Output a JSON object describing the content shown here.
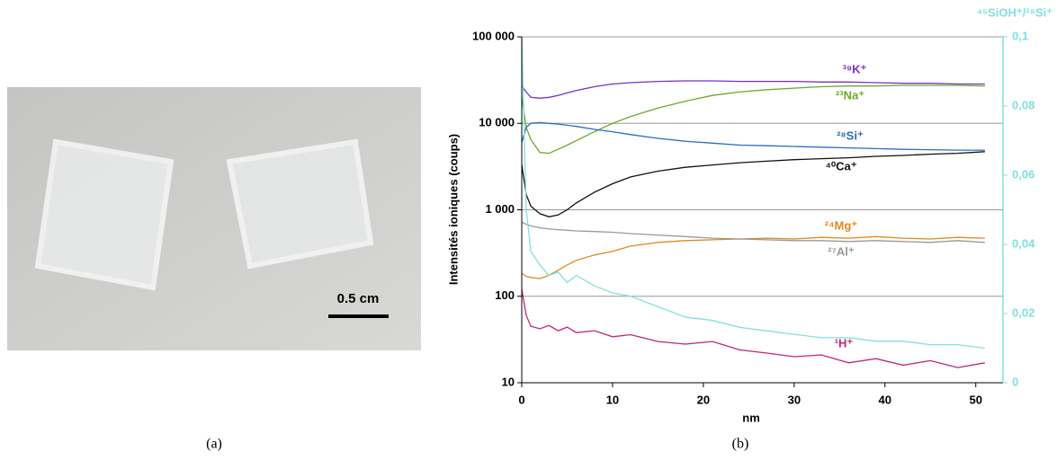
{
  "figure": {
    "captions": [
      "(a)",
      "(b)"
    ],
    "scale_bar": "0.5 cm"
  },
  "chart_data": {
    "type": "line",
    "x_label": "nm",
    "y_label": "Intensités ioniques (coups)",
    "x": [
      0,
      0.5,
      1,
      2,
      3,
      4,
      5,
      6,
      8,
      10,
      12,
      15,
      18,
      21,
      24,
      27,
      30,
      33,
      36,
      39,
      42,
      45,
      48,
      51
    ],
    "xlim": [
      0,
      53
    ],
    "xticks": [
      0,
      10,
      20,
      30,
      40,
      50
    ],
    "ylim": [
      10,
      100000
    ],
    "log_y": true,
    "yticks": [
      10,
      100,
      {
        "value": 1000,
        "label": "1 000"
      },
      {
        "value": 10000,
        "label": "10 000"
      },
      {
        "value": 100000,
        "label": "100 000"
      }
    ],
    "y2lim": [
      0,
      0.1
    ],
    "y2ticks": [
      0,
      {
        "value": 0.02,
        "label": "0,02"
      },
      {
        "value": 0.04,
        "label": "0,04"
      },
      {
        "value": 0.06,
        "label": "0,06"
      },
      {
        "value": 0.08,
        "label": "0,08"
      },
      {
        "value": 0.1,
        "label": "0,1"
      }
    ],
    "grid": true,
    "series": [
      {
        "name": "³⁹K⁺",
        "color": "#7b2fc4",
        "values": [
          27000,
          23000,
          20000,
          19500,
          20000,
          21000,
          22500,
          24000,
          26500,
          28500,
          29500,
          30500,
          31000,
          31000,
          30500,
          30500,
          30500,
          30000,
          30000,
          29500,
          29000,
          29000,
          28500,
          28500
        ]
      },
      {
        "name": "²³Na⁺",
        "color": "#6aaa2a",
        "values": [
          20000,
          9000,
          6500,
          4600,
          4500,
          5000,
          5600,
          6300,
          8000,
          10000,
          12000,
          15000,
          18000,
          21000,
          23000,
          24500,
          25500,
          26500,
          27000,
          27000,
          27500,
          27500,
          27500,
          27000
        ]
      },
      {
        "name": "²⁸Si⁺",
        "color": "#2b6cc4",
        "values": [
          6000,
          9000,
          10000,
          10200,
          10000,
          9800,
          9500,
          9200,
          8500,
          8000,
          7400,
          6700,
          6200,
          5900,
          5600,
          5500,
          5400,
          5300,
          5200,
          5100,
          5000,
          4950,
          4900,
          4900
        ]
      },
      {
        "name": "⁴⁰Ca⁺",
        "color": "#111111",
        "values": [
          3300,
          1500,
          1100,
          900,
          830,
          870,
          1000,
          1200,
          1600,
          2000,
          2400,
          2800,
          3100,
          3300,
          3500,
          3650,
          3800,
          3900,
          4000,
          4150,
          4250,
          4400,
          4500,
          4700
        ]
      },
      {
        "name": "²⁴Mg⁺",
        "color": "#e08a1e",
        "values": [
          185,
          170,
          165,
          160,
          175,
          200,
          230,
          260,
          300,
          330,
          380,
          420,
          440,
          450,
          460,
          470,
          460,
          480,
          470,
          490,
          470,
          460,
          480,
          470
        ]
      },
      {
        "name": "²⁷Al⁺",
        "color": "#999999",
        "values": [
          720,
          680,
          650,
          620,
          600,
          590,
          580,
          570,
          560,
          550,
          530,
          510,
          490,
          470,
          460,
          450,
          440,
          440,
          430,
          440,
          430,
          420,
          440,
          420
        ]
      },
      {
        "name": "¹H⁺",
        "color": "#c0267a",
        "values": [
          120,
          60,
          45,
          42,
          46,
          40,
          44,
          38,
          40,
          34,
          36,
          30,
          28,
          30,
          24,
          22,
          20,
          21,
          17,
          19,
          16,
          18,
          15,
          17
        ]
      },
      {
        "name": "⁴⁵SiOH⁺/²⁸Si⁺",
        "color": "#80e0e0",
        "axis": "y2",
        "values": [
          0.1,
          0.05,
          0.038,
          0.034,
          0.031,
          0.032,
          0.029,
          0.031,
          0.028,
          0.026,
          0.025,
          0.022,
          0.019,
          0.018,
          0.016,
          0.015,
          0.014,
          0.013,
          0.013,
          0.012,
          0.012,
          0.011,
          0.011,
          0.01
        ]
      }
    ]
  }
}
